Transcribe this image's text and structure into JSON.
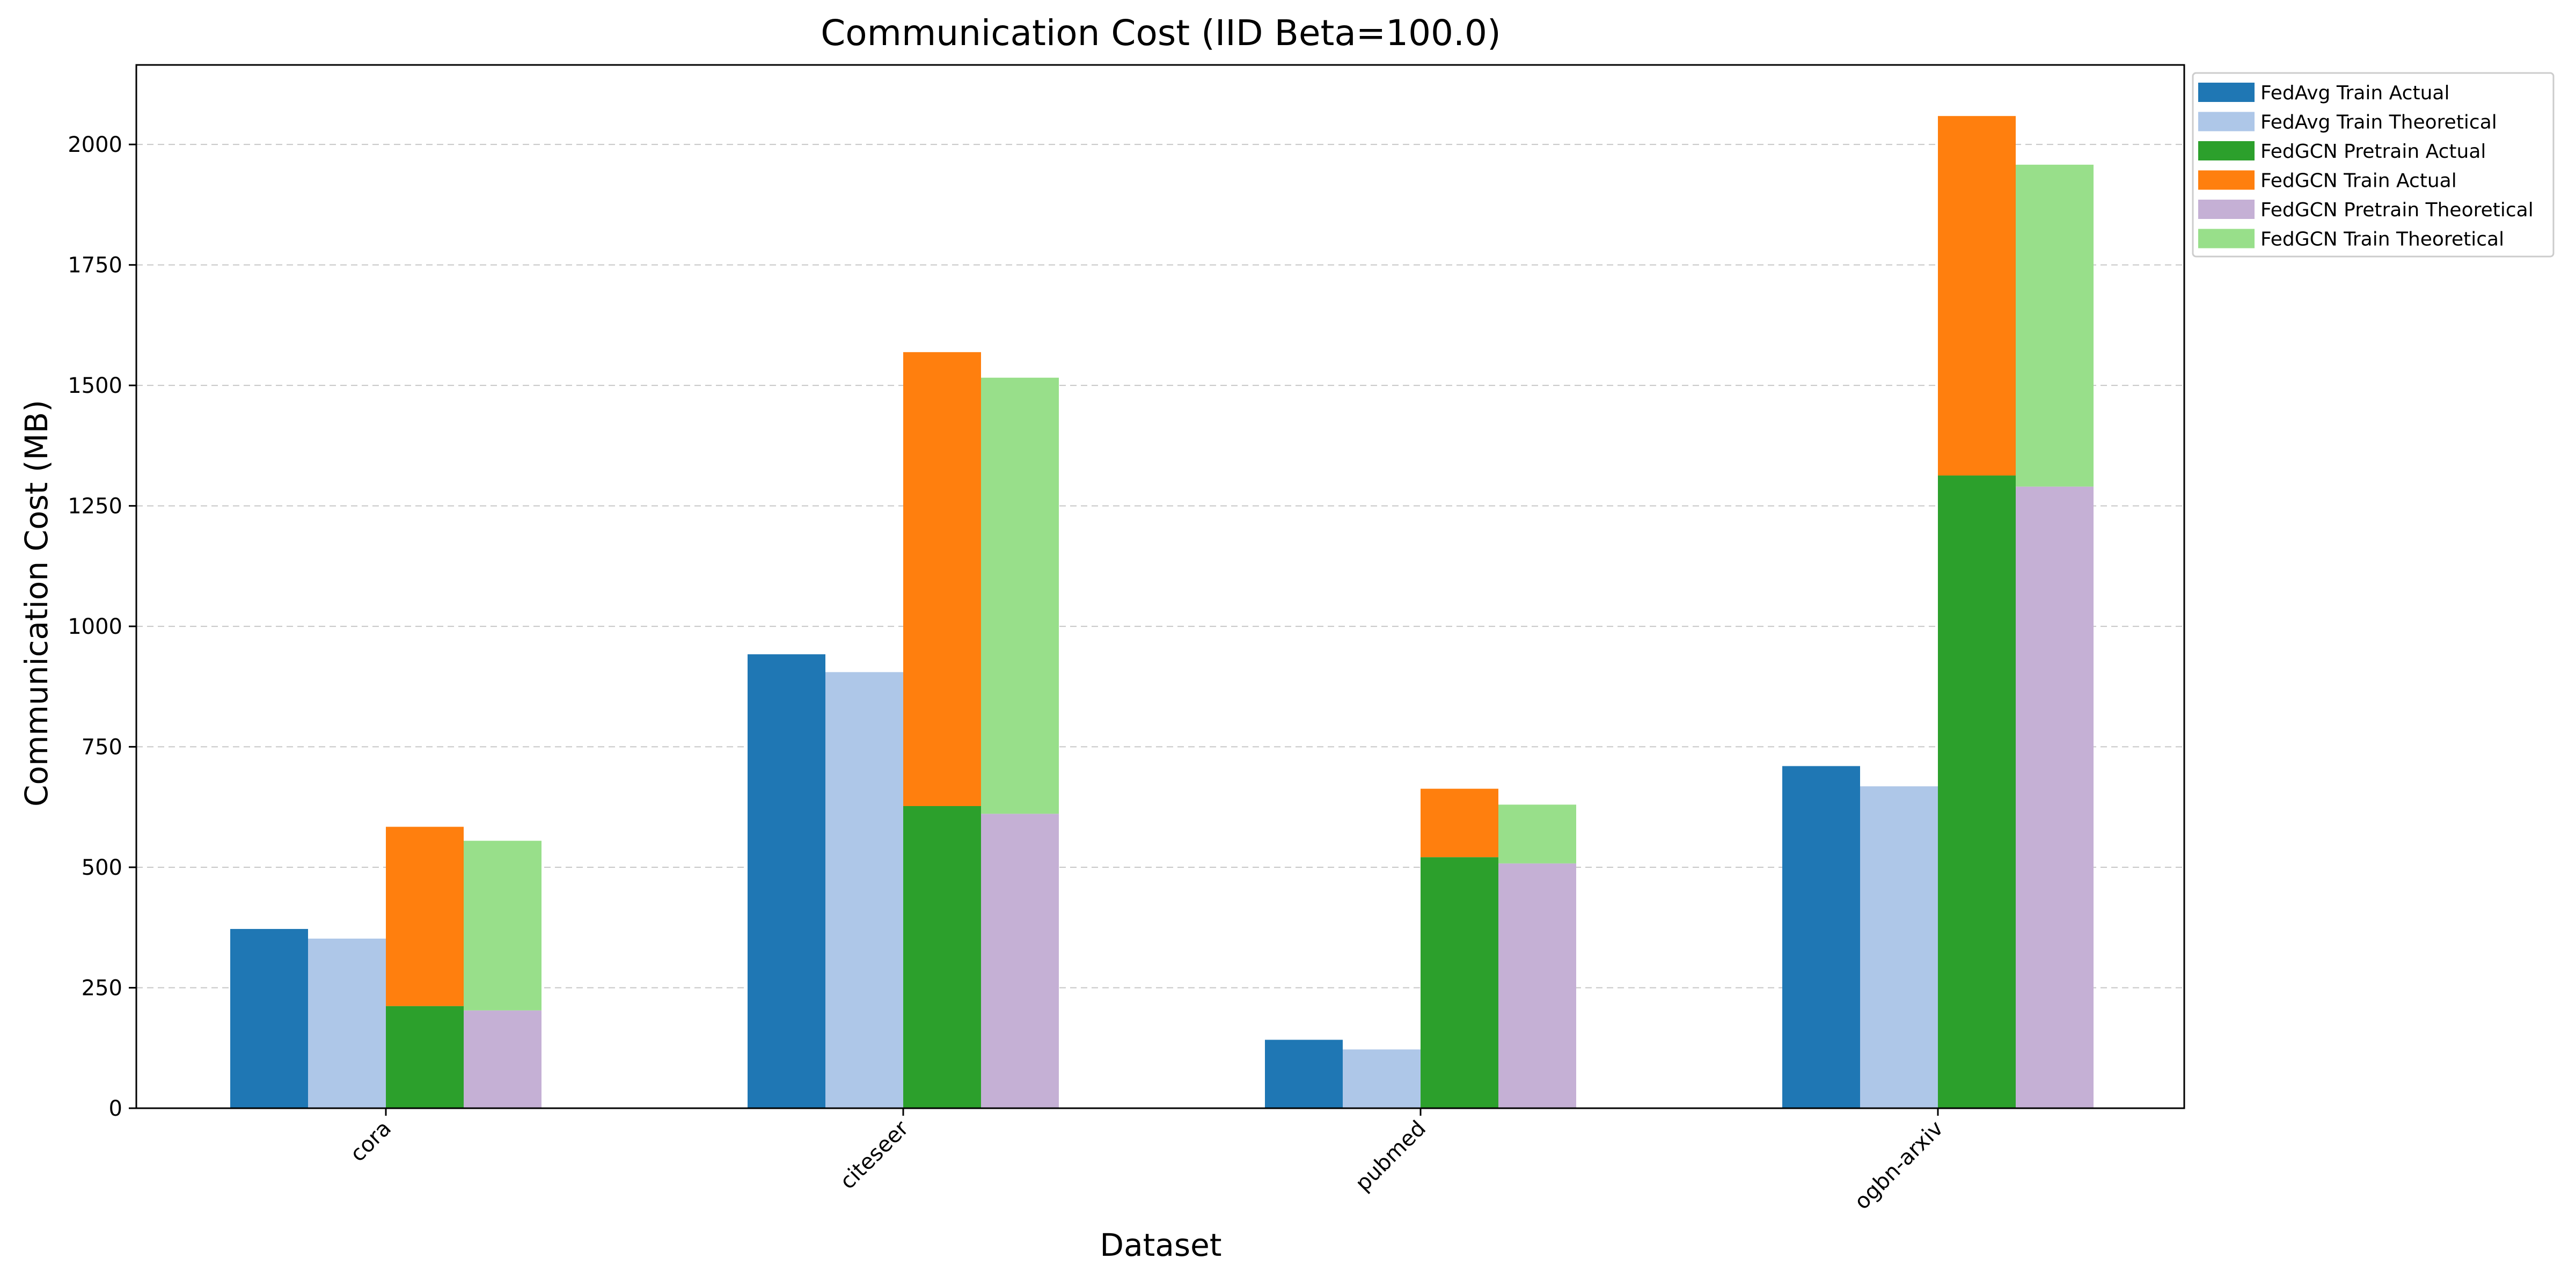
{
  "chart_data": {
    "type": "bar",
    "title": "Communication Cost (IID Beta=100.0)",
    "xlabel": "Dataset",
    "ylabel": "Communication Cost (MB)",
    "categories": [
      "cora",
      "citeseer",
      "pubmed",
      "ogbn-arxiv"
    ],
    "ylim": [
      0,
      2165
    ],
    "yticks": [
      0,
      250,
      500,
      750,
      1000,
      1250,
      1500,
      1750,
      2000
    ],
    "grid": true,
    "legend_position": "upper-right-outside",
    "series": [
      {
        "name": "FedAvg Train Actual",
        "color": "#1f77b4",
        "group": "fedavg_actual",
        "stack": "bottom",
        "values": [
          372,
          942,
          142,
          710
        ]
      },
      {
        "name": "FedAvg Train Theoretical",
        "color": "#aec7e8",
        "group": "fedavg_theoretical",
        "stack": "bottom",
        "values": [
          352,
          905,
          122,
          668
        ]
      },
      {
        "name": "FedGCN Pretrain Actual",
        "color": "#2ca02c",
        "group": "fedgcn_actual",
        "stack": "bottom",
        "values": [
          212,
          627,
          521,
          1313
        ]
      },
      {
        "name": "FedGCN Train Actual",
        "color": "#ff7f0e",
        "group": "fedgcn_actual",
        "stack": "top",
        "values": [
          372,
          942,
          142,
          746
        ]
      },
      {
        "name": "FedGCN Pretrain Theoretical",
        "color": "#c5b0d5",
        "group": "fedgcn_theoretical",
        "stack": "bottom",
        "values": [
          203,
          611,
          508,
          1290
        ]
      },
      {
        "name": "FedGCN Train Theoretical",
        "color": "#98df8a",
        "group": "fedgcn_theoretical",
        "stack": "top",
        "values": [
          352,
          905,
          122,
          668
        ]
      }
    ]
  }
}
